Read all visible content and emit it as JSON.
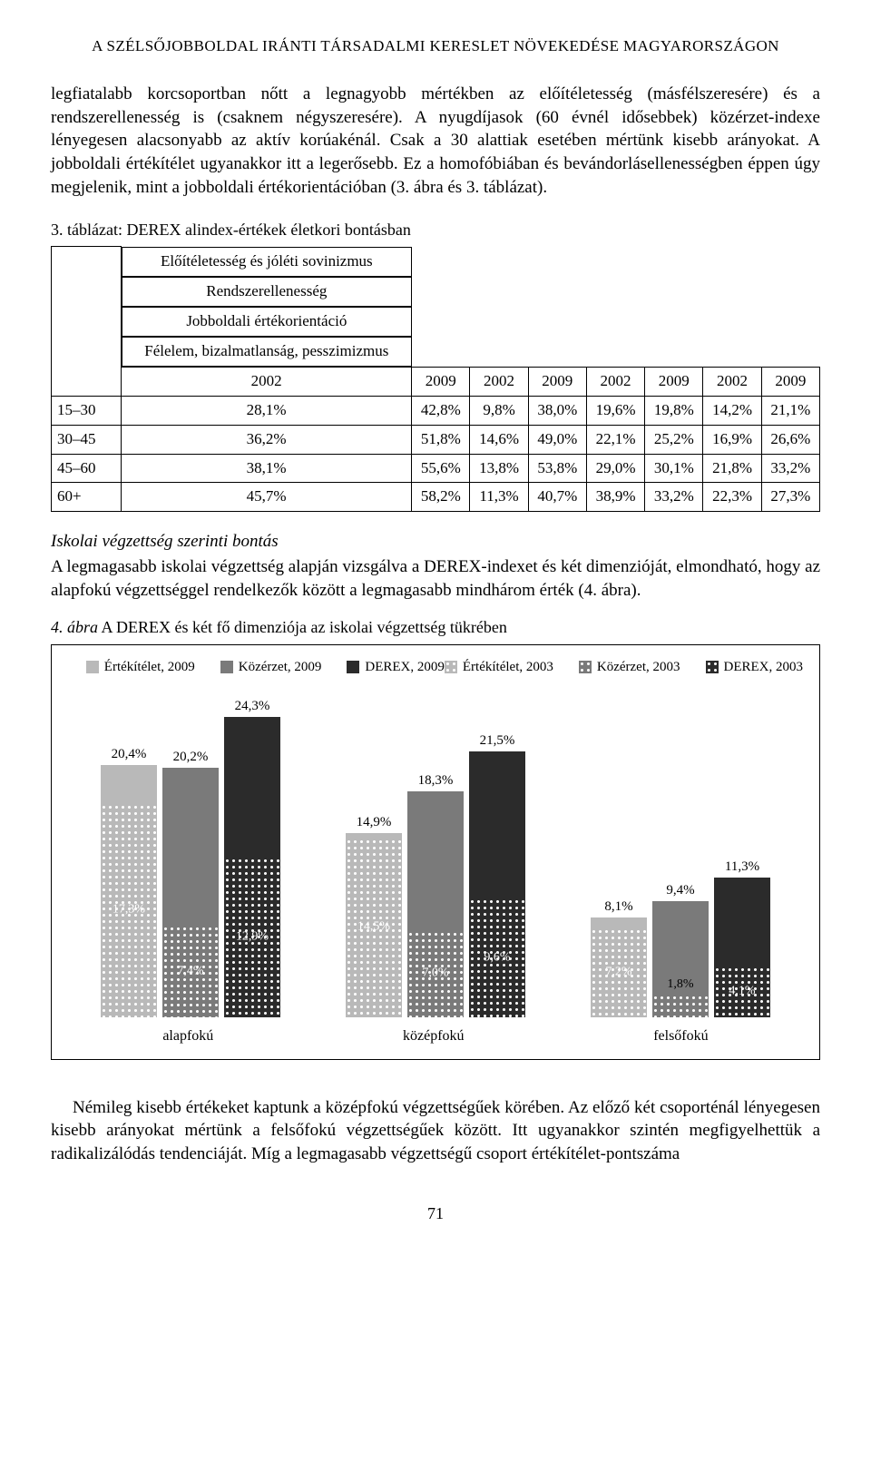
{
  "running_head": "A SZÉLSŐJOBBOLDAL IRÁNTI TÁRSADALMI KERESLET NÖVEKEDÉSE MAGYARORSZÁGON",
  "para1": "legfiatalabb korcsoportban nőtt a legnagyobb mértékben az előítéletesség (más­félszeresére) és a rendszerellenesség is (csaknem négyszeresére). A nyugdíja­sok (60 évnél idősebbek) közérzet-indexe lényegesen alacsonyabb az aktív ko­rúakénál. Csak a 30 alattiak esetében mértünk kisebb arányokat. A jobbolda­li értékítélet ugyanakkor itt a legerősebb. Ez a homofóbiában és bevándorlás­ellenességben éppen úgy megjelenik, mint a jobboldali értékorientációban (3. ábra és 3. táblázat).",
  "table_caption": "3. táblázat: DEREX alindex-értékek életkori bontásban",
  "table": {
    "group_headers": [
      "Előítéletesség és jóléti sovinizmus",
      "Rendszerellenesség",
      "Jobboldali értékorientáció",
      "Félelem, bizalmatlanság, pesszimizmus"
    ],
    "year_headers": [
      "2002",
      "2009",
      "2002",
      "2009",
      "2002",
      "2009",
      "2002",
      "2009"
    ],
    "rows": [
      {
        "label": "15–30",
        "cells": [
          "28,1%",
          "42,8%",
          "9,8%",
          "38,0%",
          "19,6%",
          "19,8%",
          "14,2%",
          "21,1%"
        ]
      },
      {
        "label": "30–45",
        "cells": [
          "36,2%",
          "51,8%",
          "14,6%",
          "49,0%",
          "22,1%",
          "25,2%",
          "16,9%",
          "26,6%"
        ]
      },
      {
        "label": "45–60",
        "cells": [
          "38,1%",
          "55,6%",
          "13,8%",
          "53,8%",
          "29,0%",
          "30,1%",
          "21,8%",
          "33,2%"
        ]
      },
      {
        "label": "60+",
        "cells": [
          "45,7%",
          "58,2%",
          "11,3%",
          "40,7%",
          "38,9%",
          "33,2%",
          "22,3%",
          "27,3%"
        ]
      }
    ]
  },
  "subhead": "Iskolai végzettség szerinti bontás",
  "para2": "A legmagasabb iskolai végzettség alapján vizsgálva a DEREX-indexet és két dimenzióját, elmondható, hogy az alapfokú végzettséggel rendelkezők között a legmagasabb mindhárom érték (4. ábra).",
  "chart_caption": "4. ábra A DEREX és két fő dimenziója az iskolai végzettség tükrében",
  "chart": {
    "legend_rows": [
      [
        {
          "label": "Értékítélet, 2009",
          "style": "solid",
          "color": "#b9b9b9"
        },
        {
          "label": "Közérzet, 2009",
          "style": "solid",
          "color": "#7a7a7a"
        },
        {
          "label": "DEREX, 2009",
          "style": "solid",
          "color": "#2b2b2b"
        }
      ],
      [
        {
          "label": "Értékítélet, 2003",
          "style": "dotted",
          "color": "#b9b9b9"
        },
        {
          "label": "Közérzet, 2003",
          "style": "dotted",
          "color": "#7a7a7a"
        },
        {
          "label": "DEREX, 2003",
          "style": "dotted",
          "color": "#2b2b2b"
        }
      ]
    ],
    "y_scale_reference": 25,
    "colors": {
      "ertek": "#b9b9b9",
      "kozerzet": "#7a7a7a",
      "derex": "#2b2b2b"
    },
    "label_color_light": "#ffffff",
    "label_color_dark": "#000000",
    "groups": [
      {
        "name": "alapfokú",
        "bars": [
          {
            "top": {
              "value": "20,4%",
              "num": 20.4
            },
            "segments": [
              {
                "series": "ertek",
                "value": "17,3%",
                "num": 17.3
              }
            ]
          },
          {
            "top": {
              "value": "20,2%",
              "num": 20.2
            },
            "segments": [
              {
                "series": "kozerzet",
                "value": "7,4%",
                "num": 7.4
              }
            ]
          },
          {
            "top": {
              "value": "24,3%",
              "num": 24.3
            },
            "segments": [
              {
                "series": "derex",
                "value": "12,9%",
                "num": 12.9
              }
            ]
          }
        ]
      },
      {
        "name": "középfokú",
        "bars": [
          {
            "top": {
              "value": "14,9%",
              "num": 14.9
            },
            "segments": [
              {
                "series": "ertek",
                "value": "14,5%",
                "num": 14.5
              }
            ]
          },
          {
            "top": {
              "value": "18,3%",
              "num": 18.3
            },
            "segments": [
              {
                "series": "kozerzet",
                "value": "7,0%",
                "num": 7.0
              }
            ]
          },
          {
            "top": {
              "value": "21,5%",
              "num": 21.5
            },
            "segments": [
              {
                "series": "derex",
                "value": "9,6%",
                "num": 9.6
              }
            ]
          }
        ]
      },
      {
        "name": "felsőfokú",
        "bars": [
          {
            "top": {
              "value": "8,1%",
              "num": 8.1
            },
            "segments": [
              {
                "series": "ertek",
                "value": "7,2%",
                "num": 7.2
              }
            ]
          },
          {
            "top": {
              "value": "9,4%",
              "num": 9.4
            },
            "segments": [
              {
                "series": "kozerzet",
                "value": "1,8%",
                "num": 1.8,
                "label_outside": true
              }
            ]
          },
          {
            "top": {
              "value": "11,3%",
              "num": 11.3
            },
            "segments": [
              {
                "series": "derex",
                "value": "4,1%",
                "num": 4.1
              }
            ]
          }
        ]
      }
    ]
  },
  "para3": "Némileg kisebb értékeket kaptunk a középfokú végzettségűek körében. Az előző két csoporténál lényegesen kisebb arányokat mértünk a felsőfokú vég­zettségűek között. Itt ugyanakkor szintén megfigyelhettük a radikalizálódás tendenciáját. Míg a legmagasabb végzettségű csoport értékítélet-pontszáma",
  "page_number": "71"
}
